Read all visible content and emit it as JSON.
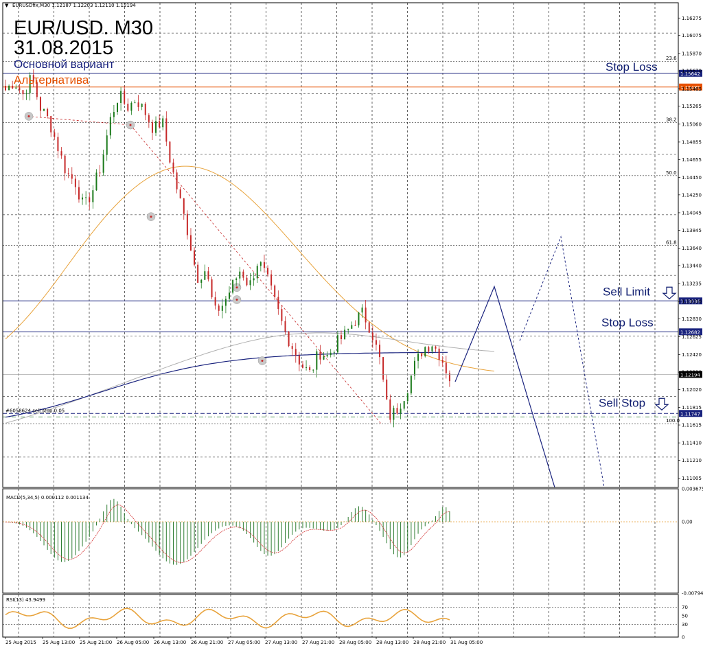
{
  "header": {
    "symbol_line": "EURUSDfix,M30  1.12187 1.12203 1.12110 1.12194",
    "title": "EUR/USD. M30",
    "date": "31.08.2015"
  },
  "plans": {
    "main_label": "Основной вариант",
    "alt_label": "Альтернатива"
  },
  "colors": {
    "main": "#1a237e",
    "alt": "#e65100",
    "ma_fast": "#e8a33c",
    "ma_slow": "#1a237e",
    "ma_long": "#b0b0b0",
    "bull": "#1b7a1b",
    "bear": "#c62828",
    "macd_hist": "#2e7d32",
    "macd_signal": "#d32f2f",
    "rsi": "#e8a33c"
  },
  "chart_data": [
    {
      "type": "candlestick",
      "name": "EURUSDfix M30",
      "ylim": [
        1.109,
        1.1645
      ],
      "y_ticks": [
        "1.16275",
        "1.16075",
        "1.15870",
        "1.15670",
        "1.15465",
        "1.15265",
        "1.15060",
        "1.14855",
        "1.14655",
        "1.14450",
        "1.14250",
        "1.14045",
        "1.13845",
        "1.13640",
        "1.13440",
        "1.13235",
        "1.13030",
        "1.12830",
        "1.12625",
        "1.12420",
        "1.12220",
        "1.12020",
        "1.11815",
        "1.11615",
        "1.11410",
        "1.11210",
        "1.11005"
      ],
      "x_ticks": [
        "25 Aug 2015",
        "25 Aug 13:00",
        "25 Aug 21:00",
        "26 Aug 05:00",
        "26 Aug 13:00",
        "26 Aug 21:00",
        "27 Aug 05:00",
        "27 Aug 13:00",
        "27 Aug 21:00",
        "28 Aug 05:00",
        "28 Aug 13:00",
        "28 Aug 21:00",
        "31 Aug 05:00"
      ],
      "last_price": "1.12194",
      "close_path": [
        1.1545,
        1.1555,
        1.154,
        1.156,
        1.1525,
        1.151,
        1.148,
        1.145,
        1.144,
        1.141,
        1.143,
        1.146,
        1.151,
        1.154,
        1.1525,
        1.1535,
        1.152,
        1.15,
        1.151,
        1.146,
        1.142,
        1.138,
        1.133,
        1.134,
        1.129,
        1.13,
        1.132,
        1.134,
        1.132,
        1.135,
        1.133,
        1.13,
        1.127,
        1.125,
        1.123,
        1.122,
        1.1245,
        1.124,
        1.1255,
        1.1265,
        1.128,
        1.129,
        1.127,
        1.1235,
        1.117,
        1.118,
        1.12,
        1.123,
        1.125,
        1.1255,
        1.124,
        1.1215
      ],
      "levels": [
        {
          "label": "Stop Loss",
          "value": 1.15642,
          "tag": "1.15642",
          "color": "#1a237e"
        },
        {
          "label": "",
          "value": 1.15485,
          "tag": "1.15485",
          "color": "#e65100"
        },
        {
          "label": "Sell Limit",
          "value": 1.13036,
          "tag": "1.13036",
          "color": "#1a237e"
        },
        {
          "label": "Stop Loss",
          "value": 1.12682,
          "tag": "1.12682",
          "color": "#1a237e"
        },
        {
          "label": "Sell Stop",
          "value": 1.11747,
          "tag": "1.11747",
          "color": "#1a237e"
        }
      ],
      "pending_order_note": "#6058624 sell stop 0.05",
      "fibonacci": [
        {
          "label": "23.6",
          "value": 1.1578
        },
        {
          "label": "38.2",
          "value": 1.1508
        },
        {
          "label": "50.0",
          "value": 1.1447
        },
        {
          "label": "61.8",
          "value": 1.1367
        },
        {
          "label": "100.0",
          "value": 1.1163
        }
      ],
      "forecast_main": [
        [
          1.1211,
          1.132
        ],
        [
          1.132,
          1.109
        ]
      ],
      "forecast_alt": [
        [
          1.1258,
          1.1377
        ],
        [
          1.1377,
          1.109
        ]
      ]
    },
    {
      "type": "histogram",
      "name": "MACD(5,34,5) 0.000112 0.001134",
      "ylim": [
        -0.007945,
        0.003675
      ],
      "y_ticks": [
        "0.003675",
        "0.00",
        "-0.007945"
      ]
    },
    {
      "type": "line",
      "name": "RSI(13) 43.9499",
      "ylim": [
        0,
        100
      ],
      "y_ticks": [
        "70",
        "50",
        "30",
        "0"
      ]
    }
  ]
}
